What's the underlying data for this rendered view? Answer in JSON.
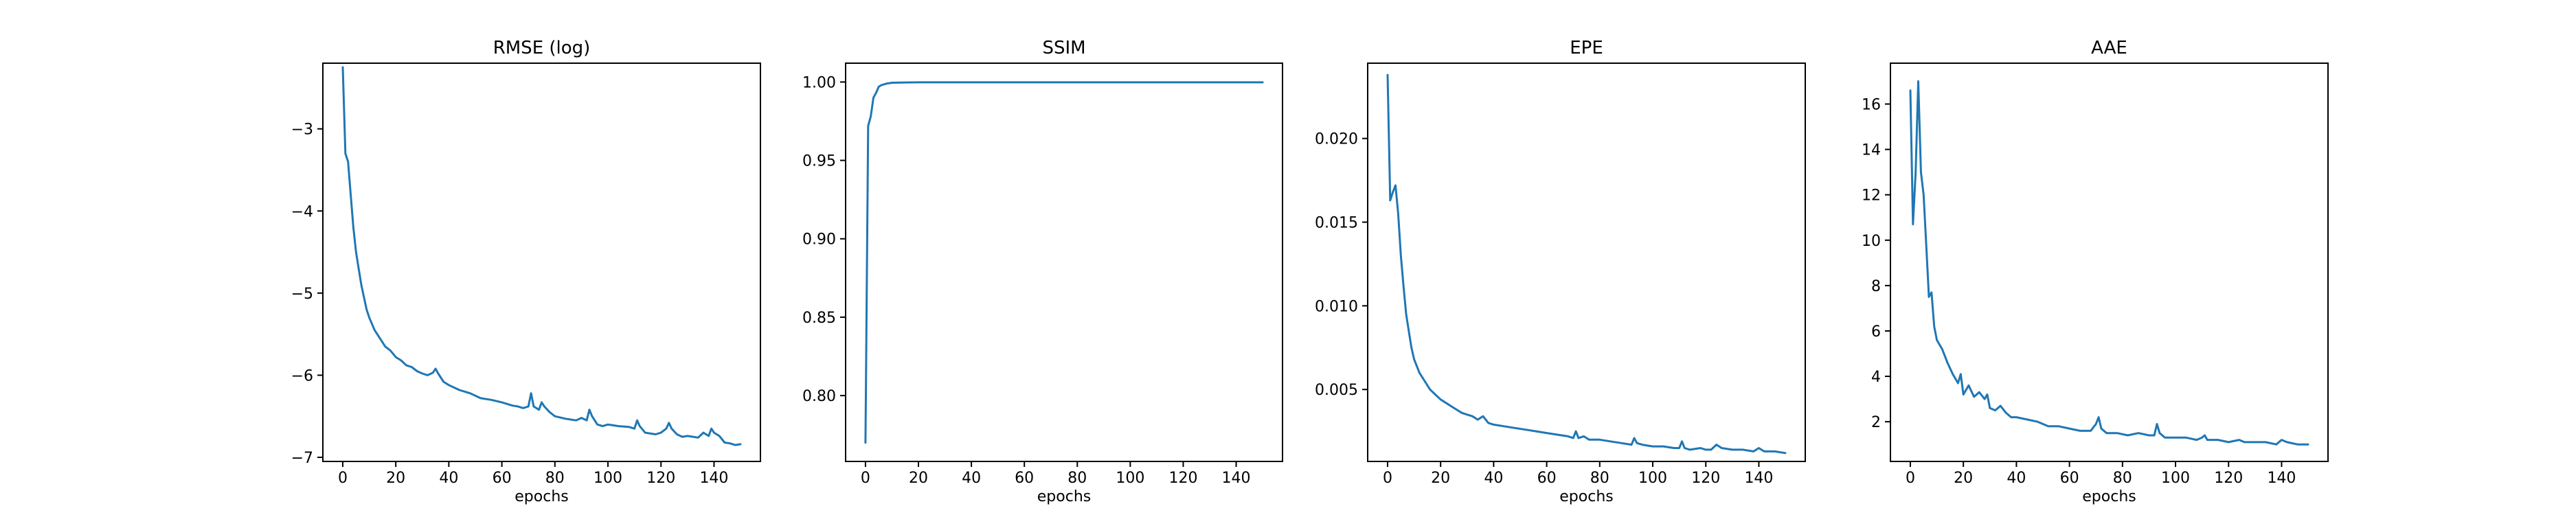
{
  "colors": {
    "series": "#1f77b4",
    "axes": "#000000",
    "background": "#ffffff"
  },
  "chart_data": [
    {
      "type": "line",
      "title": "RMSE (log)",
      "xlabel": "epochs",
      "ylabel": "",
      "xlim": [
        -7.5,
        157.5
      ],
      "ylim": [
        -7.05,
        -2.2
      ],
      "xticks": [
        0,
        20,
        40,
        60,
        80,
        100,
        120,
        140
      ],
      "yticks": [
        -7,
        -6,
        -5,
        -4,
        -3
      ],
      "tick_labels_y": [
        "−7",
        "−6",
        "−5",
        "−4",
        "−3"
      ],
      "grid": false,
      "series": [
        {
          "x": [
            0,
            1,
            2,
            3,
            4,
            5,
            6,
            7,
            8,
            9,
            10,
            12,
            14,
            16,
            18,
            20,
            22,
            24,
            26,
            28,
            30,
            32,
            34,
            35,
            36,
            38,
            40,
            44,
            48,
            52,
            56,
            60,
            64,
            66,
            68,
            70,
            71,
            72,
            74,
            75,
            76,
            78,
            80,
            84,
            88,
            90,
            92,
            93,
            94,
            96,
            98,
            100,
            104,
            108,
            110,
            111,
            112,
            114,
            118,
            120,
            122,
            123,
            124,
            126,
            128,
            130,
            134,
            136,
            138,
            139,
            140,
            142,
            144,
            146,
            148,
            150
          ],
          "y": [
            -2.25,
            -3.3,
            -3.4,
            -3.8,
            -4.2,
            -4.5,
            -4.7,
            -4.9,
            -5.05,
            -5.2,
            -5.3,
            -5.45,
            -5.55,
            -5.65,
            -5.7,
            -5.78,
            -5.82,
            -5.88,
            -5.9,
            -5.95,
            -5.98,
            -6.0,
            -5.97,
            -5.92,
            -5.98,
            -6.08,
            -6.12,
            -6.18,
            -6.22,
            -6.28,
            -6.3,
            -6.33,
            -6.37,
            -6.38,
            -6.4,
            -6.38,
            -6.22,
            -6.38,
            -6.42,
            -6.33,
            -6.38,
            -6.45,
            -6.5,
            -6.53,
            -6.55,
            -6.52,
            -6.55,
            -6.42,
            -6.5,
            -6.6,
            -6.62,
            -6.6,
            -6.62,
            -6.63,
            -6.65,
            -6.55,
            -6.62,
            -6.7,
            -6.72,
            -6.7,
            -6.65,
            -6.58,
            -6.65,
            -6.72,
            -6.75,
            -6.74,
            -6.76,
            -6.7,
            -6.74,
            -6.65,
            -6.7,
            -6.74,
            -6.82,
            -6.83,
            -6.85,
            -6.84
          ]
        }
      ]
    },
    {
      "type": "line",
      "title": "SSIM",
      "xlabel": "epochs",
      "ylabel": "",
      "xlim": [
        -7.5,
        157.5
      ],
      "ylim": [
        0.758,
        1.012
      ],
      "xticks": [
        0,
        20,
        40,
        60,
        80,
        100,
        120,
        140
      ],
      "yticks": [
        0.8,
        0.85,
        0.9,
        0.95,
        1.0
      ],
      "tick_labels_y": [
        "0.80",
        "0.85",
        "0.90",
        "0.95",
        "1.00"
      ],
      "grid": false,
      "series": [
        {
          "x": [
            0,
            1,
            2,
            3,
            4,
            5,
            6,
            8,
            10,
            15,
            20,
            30,
            40,
            60,
            80,
            100,
            120,
            140,
            150
          ],
          "y": [
            0.77,
            0.972,
            0.978,
            0.99,
            0.993,
            0.997,
            0.998,
            0.999,
            0.9995,
            0.9997,
            0.9998,
            0.9998,
            0.9998,
            0.9998,
            0.9998,
            0.9998,
            0.9998,
            0.9998,
            0.9998
          ]
        }
      ]
    },
    {
      "type": "line",
      "title": "EPE",
      "xlabel": "epochs",
      "ylabel": "",
      "xlim": [
        -7.5,
        157.5
      ],
      "ylim": [
        0.0007,
        0.0245
      ],
      "xticks": [
        0,
        20,
        40,
        60,
        80,
        100,
        120,
        140
      ],
      "yticks": [
        0.005,
        0.01,
        0.015,
        0.02
      ],
      "tick_labels_y": [
        "0.005",
        "0.010",
        "0.015",
        "0.020"
      ],
      "grid": false,
      "series": [
        {
          "x": [
            0,
            1,
            2,
            3,
            4,
            5,
            6,
            7,
            8,
            9,
            10,
            12,
            14,
            16,
            18,
            20,
            22,
            24,
            26,
            28,
            30,
            32,
            34,
            36,
            38,
            40,
            44,
            48,
            52,
            56,
            60,
            64,
            68,
            70,
            71,
            72,
            74,
            76,
            80,
            84,
            88,
            92,
            93,
            94,
            96,
            100,
            104,
            108,
            110,
            111,
            112,
            114,
            118,
            120,
            122,
            124,
            126,
            130,
            134,
            138,
            140,
            142,
            146,
            150
          ],
          "y": [
            0.0238,
            0.0163,
            0.0168,
            0.0172,
            0.0155,
            0.013,
            0.0112,
            0.0095,
            0.0085,
            0.0075,
            0.0068,
            0.006,
            0.0055,
            0.005,
            0.0047,
            0.0044,
            0.0042,
            0.004,
            0.0038,
            0.0036,
            0.0035,
            0.0034,
            0.0032,
            0.0034,
            0.003,
            0.0029,
            0.0028,
            0.0027,
            0.0026,
            0.0025,
            0.0024,
            0.0023,
            0.0022,
            0.0021,
            0.0025,
            0.0021,
            0.0022,
            0.002,
            0.002,
            0.0019,
            0.0018,
            0.0017,
            0.0021,
            0.0018,
            0.0017,
            0.0016,
            0.0016,
            0.0015,
            0.0015,
            0.0019,
            0.0015,
            0.0014,
            0.0015,
            0.0014,
            0.0014,
            0.0017,
            0.0015,
            0.0014,
            0.0014,
            0.0013,
            0.0015,
            0.0013,
            0.0013,
            0.0012
          ]
        }
      ]
    },
    {
      "type": "line",
      "title": "AAE",
      "xlabel": "epochs",
      "ylabel": "",
      "xlim": [
        -7.5,
        157.5
      ],
      "ylim": [
        0.25,
        17.8
      ],
      "xticks": [
        0,
        20,
        40,
        60,
        80,
        100,
        120,
        140
      ],
      "yticks": [
        2,
        4,
        6,
        8,
        10,
        12,
        14,
        16
      ],
      "tick_labels_y": [
        "2",
        "4",
        "6",
        "8",
        "10",
        "12",
        "14",
        "16"
      ],
      "grid": false,
      "series": [
        {
          "x": [
            0,
            1,
            2,
            3,
            4,
            5,
            6,
            7,
            8,
            9,
            10,
            12,
            14,
            16,
            18,
            19,
            20,
            22,
            24,
            26,
            28,
            29,
            30,
            32,
            34,
            36,
            38,
            40,
            44,
            48,
            52,
            56,
            60,
            64,
            68,
            70,
            71,
            72,
            74,
            78,
            82,
            86,
            90,
            92,
            93,
            94,
            96,
            100,
            104,
            108,
            110,
            111,
            112,
            116,
            120,
            124,
            126,
            130,
            134,
            138,
            140,
            142,
            146,
            150
          ],
          "y": [
            16.6,
            10.7,
            13.0,
            17.0,
            13.0,
            12.0,
            9.8,
            7.5,
            7.7,
            6.2,
            5.6,
            5.2,
            4.6,
            4.1,
            3.7,
            4.1,
            3.2,
            3.6,
            3.1,
            3.3,
            3.0,
            3.2,
            2.6,
            2.5,
            2.7,
            2.4,
            2.2,
            2.2,
            2.1,
            2.0,
            1.8,
            1.8,
            1.7,
            1.6,
            1.6,
            1.9,
            2.2,
            1.7,
            1.5,
            1.5,
            1.4,
            1.5,
            1.4,
            1.4,
            1.9,
            1.5,
            1.3,
            1.3,
            1.3,
            1.2,
            1.3,
            1.4,
            1.2,
            1.2,
            1.1,
            1.2,
            1.1,
            1.1,
            1.1,
            1.0,
            1.2,
            1.1,
            1.0,
            1.0
          ]
        }
      ]
    }
  ]
}
